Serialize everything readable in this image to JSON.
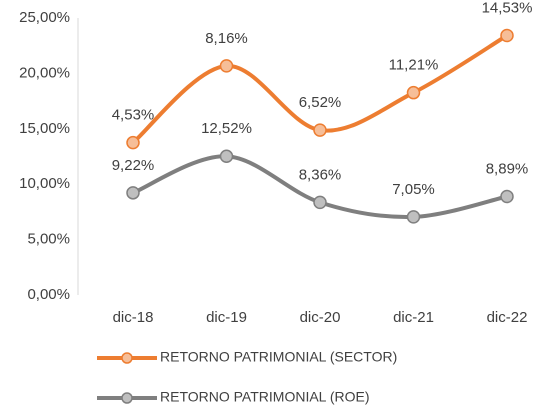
{
  "chart_data": {
    "type": "line",
    "stacked": true,
    "smooth": true,
    "categories": [
      "dic-18",
      "dic-19",
      "dic-20",
      "dic-21",
      "dic-22"
    ],
    "series": [
      {
        "name": "RETORNO PATRIMONIAL (SECTOR)",
        "color": "#ed7d31",
        "values": [
          4.53,
          8.16,
          6.52,
          11.21,
          14.53
        ],
        "value_labels": [
          "4,53%",
          "8,16%",
          "6,52%",
          "11,21%",
          "14,53%"
        ]
      },
      {
        "name": "RETORNO PATRIMONIAL (ROE)",
        "color": "#7f7f7f",
        "values": [
          9.22,
          12.52,
          8.36,
          7.05,
          8.89
        ],
        "value_labels": [
          "9,22%",
          "12,52%",
          "8,36%",
          "7,05%",
          "8,89%"
        ]
      }
    ],
    "ylim": [
      0,
      25
    ],
    "yticks": [
      {
        "value": 0,
        "label": "0,00%"
      },
      {
        "value": 5,
        "label": "5,00%"
      },
      {
        "value": 10,
        "label": "10,00%"
      },
      {
        "value": 15,
        "label": "15,00%"
      },
      {
        "value": 20,
        "label": "20,00%"
      },
      {
        "value": 25,
        "label": "25,00%"
      }
    ],
    "grid": false,
    "legend": "bottom"
  }
}
